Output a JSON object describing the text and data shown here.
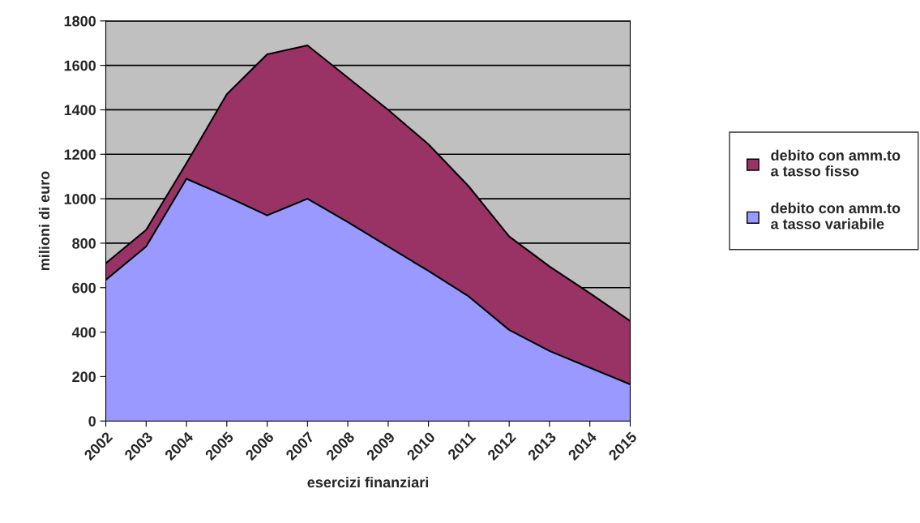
{
  "chart_data": {
    "type": "area",
    "stacked": true,
    "xlabel": "esercizi finanziari",
    "ylabel": "milioni di euro",
    "categories": [
      "2002",
      "2003",
      "2004",
      "2005",
      "2006",
      "2007",
      "2008",
      "2009",
      "2010",
      "2011",
      "2012",
      "2013",
      "2014",
      "2015"
    ],
    "series": [
      {
        "name": "debito con amm.to a tasso variabile",
        "color": "#9999ff",
        "values": [
          635,
          785,
          1090,
          1010,
          925,
          1000,
          895,
          785,
          675,
          560,
          410,
          315,
          240,
          165
        ]
      },
      {
        "name": "debito con amm.to a tasso fisso",
        "color": "#993366",
        "values": [
          75,
          75,
          70,
          460,
          725,
          690,
          650,
          615,
          570,
          495,
          420,
          380,
          335,
          285
        ]
      }
    ],
    "ylim": [
      0,
      1800
    ],
    "yticks": [
      0,
      200,
      400,
      600,
      800,
      1000,
      1200,
      1400,
      1600,
      1800
    ],
    "grid": "y",
    "legend": "right"
  }
}
